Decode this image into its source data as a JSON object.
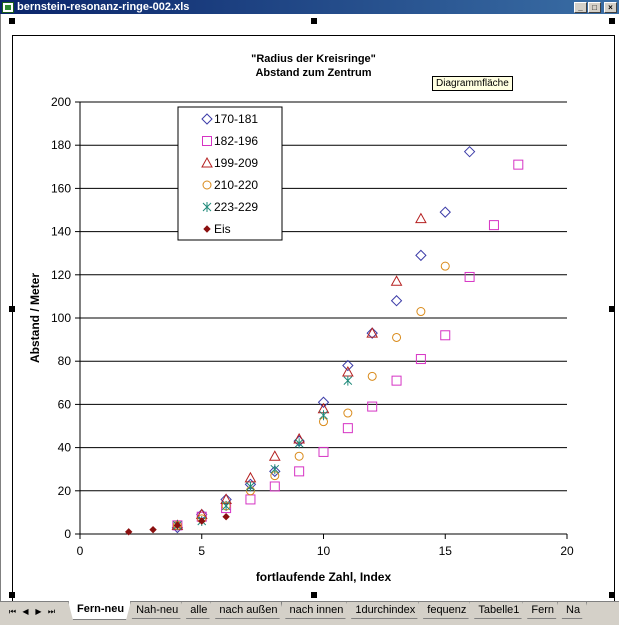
{
  "window": {
    "title": "bernstein-resonanz-ringe-002.xls",
    "min_label": "_",
    "max_label": "□",
    "close_label": "×"
  },
  "tooltip": "Diagrammfläche",
  "sheet_nav": [
    "⏮",
    "◀",
    "▶",
    "⏭"
  ],
  "tabs": [
    {
      "label": "Fern-neu",
      "active": true
    },
    {
      "label": "Nah-neu",
      "active": false
    },
    {
      "label": "alle",
      "active": false
    },
    {
      "label": "nach außen",
      "active": false
    },
    {
      "label": "nach innen",
      "active": false
    },
    {
      "label": "1durchindex",
      "active": false
    },
    {
      "label": "fequenz",
      "active": false
    },
    {
      "label": "Tabelle1",
      "active": false
    },
    {
      "label": "Fern",
      "active": false
    },
    {
      "label": "Na",
      "active": false
    }
  ],
  "chart_data": {
    "type": "scatter",
    "title": "\"Radius der Kreisringe\"",
    "subtitle": "Abstand zum Zentrum",
    "xlabel": "fortlaufende Zahl, Index",
    "ylabel": "Abstand / Meter",
    "xlim": [
      0,
      20
    ],
    "ylim": [
      0,
      200
    ],
    "x_ticks": [
      0,
      5,
      10,
      15,
      20
    ],
    "y_ticks": [
      0,
      20,
      40,
      60,
      80,
      100,
      120,
      140,
      160,
      180,
      200
    ],
    "grid": "horizontal major",
    "legend_position": "top-left",
    "series": [
      {
        "name": "170-181",
        "marker": "diamond",
        "color": "#3c3ca8",
        "x": [
          4,
          5,
          6,
          7,
          8,
          9,
          10,
          11,
          12,
          13,
          14,
          15,
          16
        ],
        "y": [
          3,
          9,
          16,
          23,
          29,
          43,
          61,
          78,
          93,
          108,
          129,
          149,
          177
        ]
      },
      {
        "name": "182-196",
        "marker": "square",
        "color": "#d633c4",
        "x": [
          4,
          5,
          6,
          7,
          8,
          9,
          10,
          11,
          12,
          13,
          14,
          15,
          16,
          17,
          18
        ],
        "y": [
          4,
          8,
          12,
          16,
          22,
          29,
          38,
          49,
          59,
          71,
          81,
          92,
          119,
          143,
          171
        ]
      },
      {
        "name": "199-209",
        "marker": "triangle",
        "color": "#b52020",
        "x": [
          4,
          5,
          6,
          7,
          8,
          9,
          10,
          11,
          12,
          13,
          14
        ],
        "y": [
          4,
          9,
          16,
          26,
          36,
          44,
          58,
          75,
          93,
          117,
          146
        ]
      },
      {
        "name": "210-220",
        "marker": "circle",
        "color": "#d98a1a",
        "x": [
          4,
          5,
          6,
          7,
          8,
          9,
          10,
          11,
          12,
          13,
          14,
          15
        ],
        "y": [
          4,
          7,
          13,
          20,
          27,
          36,
          52,
          56,
          73,
          91,
          103,
          124
        ]
      },
      {
        "name": "223-229",
        "marker": "star",
        "color": "#1f8a7a",
        "x": [
          4,
          5,
          6,
          7,
          8,
          9,
          10,
          11
        ],
        "y": [
          4,
          6,
          13,
          22,
          30,
          42,
          55,
          71
        ]
      },
      {
        "name": "Eis",
        "marker": "dot",
        "color": "#8b1010",
        "x": [
          2,
          3,
          4,
          5,
          6
        ],
        "y": [
          1,
          2,
          4,
          6,
          8
        ]
      }
    ]
  }
}
